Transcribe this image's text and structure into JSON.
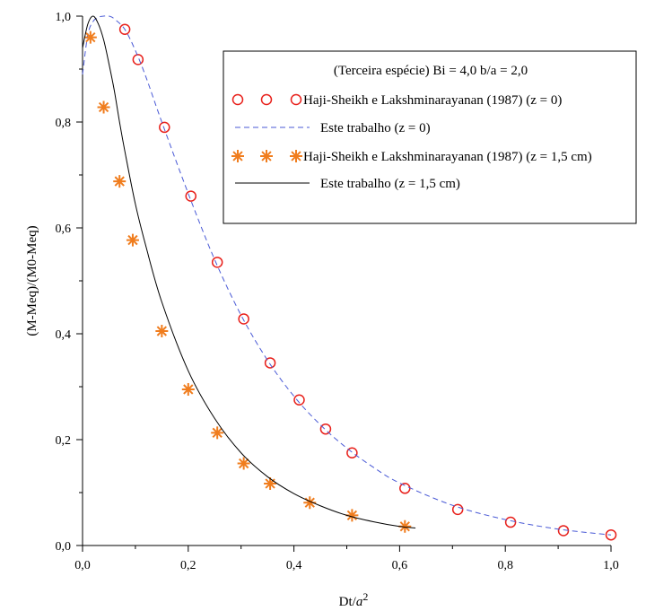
{
  "chart_data": {
    "type": "line",
    "xlabel_main": "Dt/",
    "xlabel_var": "a",
    "xlabel_exp": "2",
    "ylabel": "(M-Meq)/(M0-Meq)",
    "xlim": [
      0,
      1
    ],
    "ylim": [
      0,
      1
    ],
    "x_ticks": [
      "0,0",
      "0,2",
      "0,4",
      "0,6",
      "0,8",
      "1,0"
    ],
    "y_ticks": [
      "0,0",
      "0,2",
      "0,4",
      "0,6",
      "0,8",
      "1,0"
    ],
    "grid": false,
    "legend_position": "top-right",
    "legend_title": "(Terceira espécie)  Bi = 4,0  b/a = 2,0",
    "colors": {
      "circles": "#e8201b",
      "dashed": "#4a5ad6",
      "stars": "#f07d1e",
      "solid": "#000000"
    },
    "series": [
      {
        "name": "Haji-Sheikh e Lakshminarayanan (1987)  (z = 0)",
        "style": "circle-markers",
        "x": [
          0.08,
          0.105,
          0.155,
          0.205,
          0.255,
          0.305,
          0.355,
          0.41,
          0.46,
          0.51,
          0.61,
          0.71,
          0.81,
          0.91,
          1.0
        ],
        "y": [
          0.975,
          0.918,
          0.79,
          0.66,
          0.535,
          0.428,
          0.345,
          0.275,
          0.22,
          0.175,
          0.108,
          0.068,
          0.044,
          0.028,
          0.02
        ]
      },
      {
        "name": "Este trabalho (z = 0)",
        "style": "dashed-line",
        "x": [
          0.0,
          0.01,
          0.02,
          0.03,
          0.04,
          0.05,
          0.06,
          0.08,
          0.1,
          0.12,
          0.15,
          0.2,
          0.25,
          0.3,
          0.35,
          0.4,
          0.45,
          0.5,
          0.55,
          0.6,
          0.7,
          0.8,
          0.9,
          1.0
        ],
        "y": [
          0.89,
          0.965,
          0.99,
          0.998,
          1.0,
          1.0,
          0.995,
          0.975,
          0.935,
          0.885,
          0.8,
          0.665,
          0.54,
          0.435,
          0.35,
          0.282,
          0.228,
          0.184,
          0.148,
          0.118,
          0.076,
          0.049,
          0.031,
          0.02
        ]
      },
      {
        "name": "Haji-Sheikh e Lakshminarayanan (1987)  (z = 1,5 cm)",
        "style": "star-markers",
        "x": [
          0.015,
          0.04,
          0.07,
          0.095,
          0.15,
          0.2,
          0.255,
          0.305,
          0.355,
          0.43,
          0.51,
          0.61
        ],
        "y": [
          0.96,
          0.828,
          0.688,
          0.577,
          0.405,
          0.295,
          0.213,
          0.155,
          0.117,
          0.081,
          0.057,
          0.036
        ]
      },
      {
        "name": "Este trabalho (z = 1,5 cm)",
        "style": "solid-line",
        "x": [
          0.0,
          0.01,
          0.02,
          0.03,
          0.04,
          0.05,
          0.06,
          0.07,
          0.08,
          0.1,
          0.12,
          0.15,
          0.2,
          0.25,
          0.3,
          0.35,
          0.4,
          0.45,
          0.5,
          0.55,
          0.6,
          0.63
        ],
        "y": [
          0.94,
          0.985,
          1.0,
          0.985,
          0.955,
          0.91,
          0.86,
          0.8,
          0.745,
          0.645,
          0.565,
          0.46,
          0.33,
          0.24,
          0.175,
          0.13,
          0.098,
          0.075,
          0.057,
          0.045,
          0.036,
          0.033
        ]
      }
    ]
  }
}
